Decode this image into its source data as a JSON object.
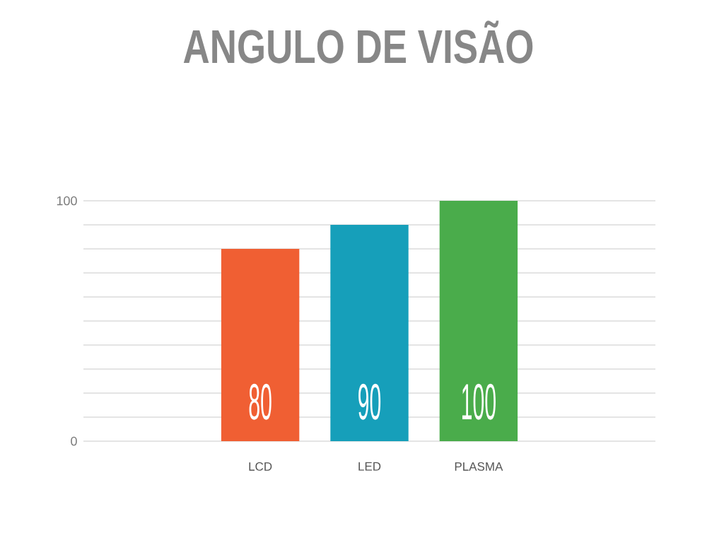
{
  "chart_data": {
    "type": "bar",
    "title": "ANGULO DE VISÃO",
    "categories": [
      "LCD",
      "LED",
      "PLASMA"
    ],
    "values": [
      80,
      90,
      100
    ],
    "colors": [
      "#f05f33",
      "#169fba",
      "#4aac4b"
    ],
    "ylim": [
      0,
      100
    ],
    "yticks": [
      0,
      100
    ],
    "grid": "y",
    "data_labels": true
  }
}
